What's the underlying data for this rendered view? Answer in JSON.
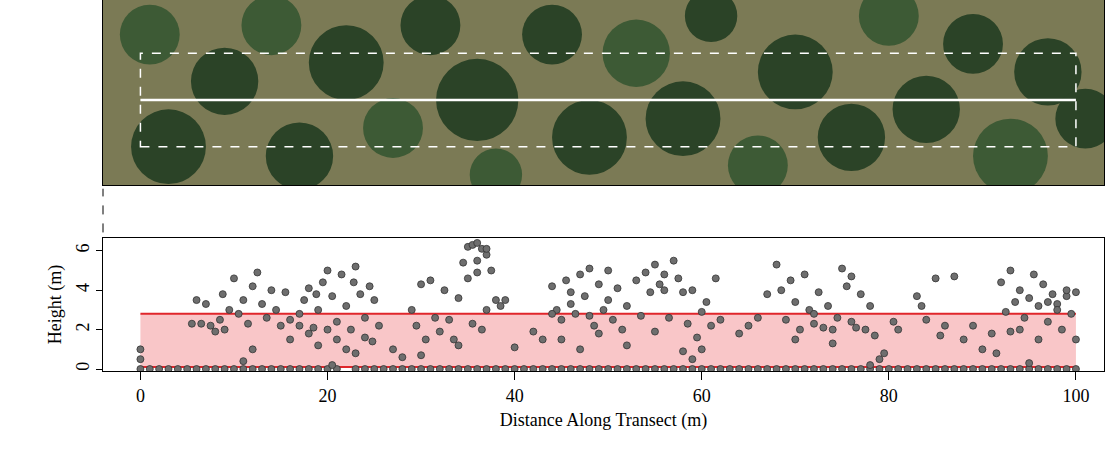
{
  "chart_data": {
    "type": "scatter",
    "x_label": "Distance Along Transect (m)",
    "y_label": "Height (m)",
    "xlim": [
      -4,
      103
    ],
    "ylim": [
      -0.1,
      6.65
    ],
    "xticks": [
      0,
      20,
      40,
      60,
      80,
      100
    ],
    "yticks": [
      0,
      2,
      4,
      6
    ],
    "grid": false,
    "series": [
      {
        "color": "#6e6e6e",
        "marker": "circle",
        "points": [
          [
            0,
            0
          ],
          [
            1,
            0
          ],
          [
            2,
            0
          ],
          [
            3,
            0
          ],
          [
            4,
            0
          ],
          [
            5,
            0
          ],
          [
            6,
            0
          ],
          [
            7,
            0
          ],
          [
            8,
            0
          ],
          [
            9,
            0
          ],
          [
            10,
            0
          ],
          [
            11,
            0
          ],
          [
            12,
            0
          ],
          [
            13,
            0
          ],
          [
            14,
            0
          ],
          [
            15,
            0
          ],
          [
            16,
            0
          ],
          [
            17,
            0
          ],
          [
            18,
            0
          ],
          [
            19,
            0
          ],
          [
            20,
            0
          ],
          [
            21,
            0
          ],
          [
            23,
            0
          ],
          [
            24,
            0
          ],
          [
            25,
            0
          ],
          [
            26,
            0
          ],
          [
            27,
            0
          ],
          [
            28,
            0
          ],
          [
            29,
            0
          ],
          [
            30,
            0
          ],
          [
            31,
            0
          ],
          [
            32,
            0
          ],
          [
            33,
            0
          ],
          [
            34,
            0
          ],
          [
            35,
            0
          ],
          [
            36,
            0
          ],
          [
            37,
            0
          ],
          [
            38,
            0
          ],
          [
            39,
            0
          ],
          [
            40,
            0
          ],
          [
            41,
            0
          ],
          [
            42,
            0
          ],
          [
            43,
            0
          ],
          [
            44,
            0
          ],
          [
            45,
            0
          ],
          [
            46,
            0
          ],
          [
            47,
            0
          ],
          [
            48,
            0
          ],
          [
            49,
            0
          ],
          [
            50,
            0
          ],
          [
            51,
            0
          ],
          [
            52,
            0
          ],
          [
            53,
            0
          ],
          [
            54,
            0
          ],
          [
            55,
            0
          ],
          [
            56,
            0
          ],
          [
            57,
            0
          ],
          [
            58,
            0
          ],
          [
            59,
            0
          ],
          [
            60,
            0
          ],
          [
            61,
            0
          ],
          [
            62,
            0
          ],
          [
            63,
            0
          ],
          [
            64,
            0
          ],
          [
            65,
            0
          ],
          [
            66,
            0
          ],
          [
            67,
            0
          ],
          [
            68,
            0
          ],
          [
            69,
            0
          ],
          [
            70,
            0
          ],
          [
            71,
            0
          ],
          [
            72,
            0
          ],
          [
            73,
            0
          ],
          [
            74,
            0
          ],
          [
            75,
            0
          ],
          [
            76,
            0
          ],
          [
            77,
            0
          ],
          [
            78,
            0
          ],
          [
            79,
            0
          ],
          [
            80,
            0
          ],
          [
            81,
            0
          ],
          [
            82,
            0
          ],
          [
            83,
            0
          ],
          [
            84,
            0
          ],
          [
            85,
            0
          ],
          [
            86,
            0
          ],
          [
            87,
            0
          ],
          [
            88,
            0
          ],
          [
            89,
            0
          ],
          [
            90,
            0
          ],
          [
            91,
            0
          ],
          [
            92,
            0
          ],
          [
            93,
            0
          ],
          [
            94,
            0
          ],
          [
            95,
            0
          ],
          [
            96,
            0
          ],
          [
            97,
            0
          ],
          [
            98,
            0
          ],
          [
            99,
            0
          ],
          [
            100,
            0
          ],
          [
            0,
            1.0
          ],
          [
            0,
            0.5
          ],
          [
            5.5,
            2.3
          ],
          [
            6,
            3.5
          ],
          [
            6.5,
            2.3
          ],
          [
            7,
            3.3
          ],
          [
            7.5,
            2.2
          ],
          [
            8,
            1.9
          ],
          [
            8.5,
            2.5
          ],
          [
            9,
            2.0
          ],
          [
            8.8,
            3.8
          ],
          [
            9.5,
            3.0
          ],
          [
            10,
            4.6
          ],
          [
            10.5,
            2.8
          ],
          [
            11,
            3.5
          ],
          [
            11.5,
            2.3
          ],
          [
            12,
            4.2
          ],
          [
            12.5,
            4.9
          ],
          [
            13,
            3.3
          ],
          [
            13.5,
            2.6
          ],
          [
            14,
            4.0
          ],
          [
            14.5,
            3.0
          ],
          [
            11,
            0.4
          ],
          [
            12,
            1.0
          ],
          [
            15,
            2.2
          ],
          [
            15.5,
            3.9
          ],
          [
            16,
            2.5
          ],
          [
            17,
            2.8
          ],
          [
            17.5,
            3.5
          ],
          [
            18,
            4.1
          ],
          [
            18.5,
            2.1
          ],
          [
            19,
            3.0
          ],
          [
            19.5,
            4.4
          ],
          [
            20,
            5.0
          ],
          [
            20.5,
            3.7
          ],
          [
            21,
            2.4
          ],
          [
            21.5,
            4.8
          ],
          [
            22,
            3.2
          ],
          [
            22.5,
            2.0
          ],
          [
            23,
            5.2
          ],
          [
            23.5,
            3.8
          ],
          [
            24,
            2.6
          ],
          [
            24.5,
            4.2
          ],
          [
            25,
            3.5
          ],
          [
            25.5,
            2.2
          ],
          [
            18,
            1.8
          ],
          [
            19,
            1.2
          ],
          [
            20,
            2.0
          ],
          [
            21,
            1.5
          ],
          [
            22,
            1.0
          ],
          [
            23,
            0.8
          ],
          [
            24,
            1.6
          ],
          [
            20.5,
            0.2
          ],
          [
            16,
            1.5
          ],
          [
            17,
            2.2
          ],
          [
            18.8,
            3.8
          ],
          [
            22.8,
            4.4
          ],
          [
            24.8,
            1.4
          ],
          [
            27,
            1.0
          ],
          [
            28,
            0.6
          ],
          [
            29,
            3.0
          ],
          [
            29.5,
            2.2
          ],
          [
            30,
            4.3
          ],
          [
            30.5,
            1.5
          ],
          [
            31,
            4.5
          ],
          [
            31.5,
            2.6
          ],
          [
            32,
            1.9
          ],
          [
            32.5,
            4.0
          ],
          [
            30,
            0.7
          ],
          [
            33,
            2.5
          ],
          [
            33.5,
            1.5
          ],
          [
            34,
            3.6
          ],
          [
            34.5,
            5.4
          ],
          [
            35,
            6.2
          ],
          [
            35.5,
            6.3
          ],
          [
            36,
            6.4
          ],
          [
            36.5,
            6.1
          ],
          [
            37,
            5.8
          ],
          [
            35,
            4.6
          ],
          [
            36,
            4.9
          ],
          [
            37.5,
            5.0
          ],
          [
            38,
            3.5
          ],
          [
            38.5,
            3.2
          ],
          [
            39,
            3.5
          ],
          [
            35.5,
            2.3
          ],
          [
            36.5,
            2.0
          ],
          [
            34,
            1.2
          ],
          [
            37,
            3.0
          ],
          [
            36,
            5.5
          ],
          [
            37,
            6.1
          ],
          [
            40,
            1.1
          ],
          [
            42,
            1.9
          ],
          [
            43,
            1.5
          ],
          [
            44,
            4.2
          ],
          [
            44.5,
            3.0
          ],
          [
            45,
            2.5
          ],
          [
            45.5,
            4.5
          ],
          [
            46,
            3.3
          ],
          [
            46.5,
            2.8
          ],
          [
            47,
            4.8
          ],
          [
            47.5,
            3.7
          ],
          [
            48,
            5.1
          ],
          [
            48.5,
            2.2
          ],
          [
            49,
            4.3
          ],
          [
            49.5,
            3.0
          ],
          [
            50,
            5.0
          ],
          [
            50.5,
            2.5
          ],
          [
            45,
            1.5
          ],
          [
            47,
            1.0
          ],
          [
            49,
            1.8
          ],
          [
            44,
            2.8
          ],
          [
            46,
            3.9
          ],
          [
            48,
            2.7
          ],
          [
            50,
            3.5
          ],
          [
            51,
            4.1
          ],
          [
            51.5,
            2.0
          ],
          [
            52,
            3.2
          ],
          [
            53,
            4.5
          ],
          [
            53.5,
            2.7
          ],
          [
            54,
            4.9
          ],
          [
            54.5,
            3.9
          ],
          [
            55,
            5.3
          ],
          [
            55.5,
            4.3
          ],
          [
            56,
            4.8
          ],
          [
            56.5,
            2.6
          ],
          [
            57,
            5.5
          ],
          [
            57.5,
            4.6
          ],
          [
            58,
            3.9
          ],
          [
            58.5,
            2.3
          ],
          [
            59,
            4.0
          ],
          [
            59.5,
            1.6
          ],
          [
            60,
            2.9
          ],
          [
            60.5,
            3.4
          ],
          [
            61,
            2.2
          ],
          [
            61.5,
            4.6
          ],
          [
            62,
            2.5
          ],
          [
            55,
            1.9
          ],
          [
            58,
            0.9
          ],
          [
            59,
            0.5
          ],
          [
            60,
            1.0
          ],
          [
            52,
            1.2
          ],
          [
            56,
            4.0
          ],
          [
            64,
            1.8
          ],
          [
            65,
            2.2
          ],
          [
            66,
            2.6
          ],
          [
            67,
            3.8
          ],
          [
            68,
            5.3
          ],
          [
            68.5,
            4.0
          ],
          [
            69,
            2.5
          ],
          [
            69.5,
            4.5
          ],
          [
            70,
            3.4
          ],
          [
            70.5,
            2.0
          ],
          [
            71,
            4.8
          ],
          [
            71.5,
            3.0
          ],
          [
            72,
            2.3
          ],
          [
            72.5,
            3.9
          ],
          [
            73,
            2.1
          ],
          [
            73.5,
            3.2
          ],
          [
            74,
            2.0
          ],
          [
            74.5,
            2.6
          ],
          [
            75,
            5.1
          ],
          [
            75.5,
            4.2
          ],
          [
            76,
            4.7
          ],
          [
            76.5,
            2.1
          ],
          [
            77,
            3.8
          ],
          [
            77.5,
            2.0
          ],
          [
            78,
            3.2
          ],
          [
            78.5,
            1.7
          ],
          [
            79,
            0.5
          ],
          [
            79.5,
            0.8
          ],
          [
            70,
            1.5
          ],
          [
            72,
            2.8
          ],
          [
            74,
            1.3
          ],
          [
            76,
            2.4
          ],
          [
            78,
            0.2
          ],
          [
            80.5,
            2.4
          ],
          [
            81,
            2.0
          ],
          [
            83,
            3.7
          ],
          [
            83.5,
            3.2
          ],
          [
            84,
            2.5
          ],
          [
            85,
            4.6
          ],
          [
            86,
            2.2
          ],
          [
            87,
            4.7
          ],
          [
            88,
            1.5
          ],
          [
            89,
            2.2
          ],
          [
            90,
            1.0
          ],
          [
            91,
            1.8
          ],
          [
            91.5,
            0.8
          ],
          [
            85.5,
            1.7
          ],
          [
            92,
            4.4
          ],
          [
            92.5,
            2.9
          ],
          [
            93,
            5.0
          ],
          [
            93.5,
            3.4
          ],
          [
            94,
            4.0
          ],
          [
            94.5,
            2.6
          ],
          [
            95,
            3.6
          ],
          [
            95.5,
            4.8
          ],
          [
            96,
            3.2
          ],
          [
            96.5,
            4.3
          ],
          [
            97,
            2.4
          ],
          [
            97.5,
            3.8
          ],
          [
            98,
            3.3
          ],
          [
            98.5,
            2.0
          ],
          [
            99,
            3.7
          ],
          [
            99.5,
            2.8
          ],
          [
            100,
            1.5
          ],
          [
            93,
            1.9
          ],
          [
            95,
            0.3
          ],
          [
            96,
            1.5
          ],
          [
            98,
            3.0
          ],
          [
            99,
            4.0
          ],
          [
            94,
            2.0
          ],
          [
            97,
            3.4
          ],
          [
            100,
            3.9
          ]
        ]
      }
    ],
    "band": {
      "xlim": [
        0,
        100
      ],
      "ylim": [
        0.1,
        2.8
      ],
      "color": "#f9c6c8",
      "line_color": "#e0262b"
    },
    "image": {
      "xlim": [
        -4,
        103
      ],
      "ylim": [
        -9.1,
        10.7
      ],
      "transect_x": [
        0,
        100
      ],
      "buffer_y": [
        -5,
        5
      ],
      "color": "#ffffff"
    }
  }
}
